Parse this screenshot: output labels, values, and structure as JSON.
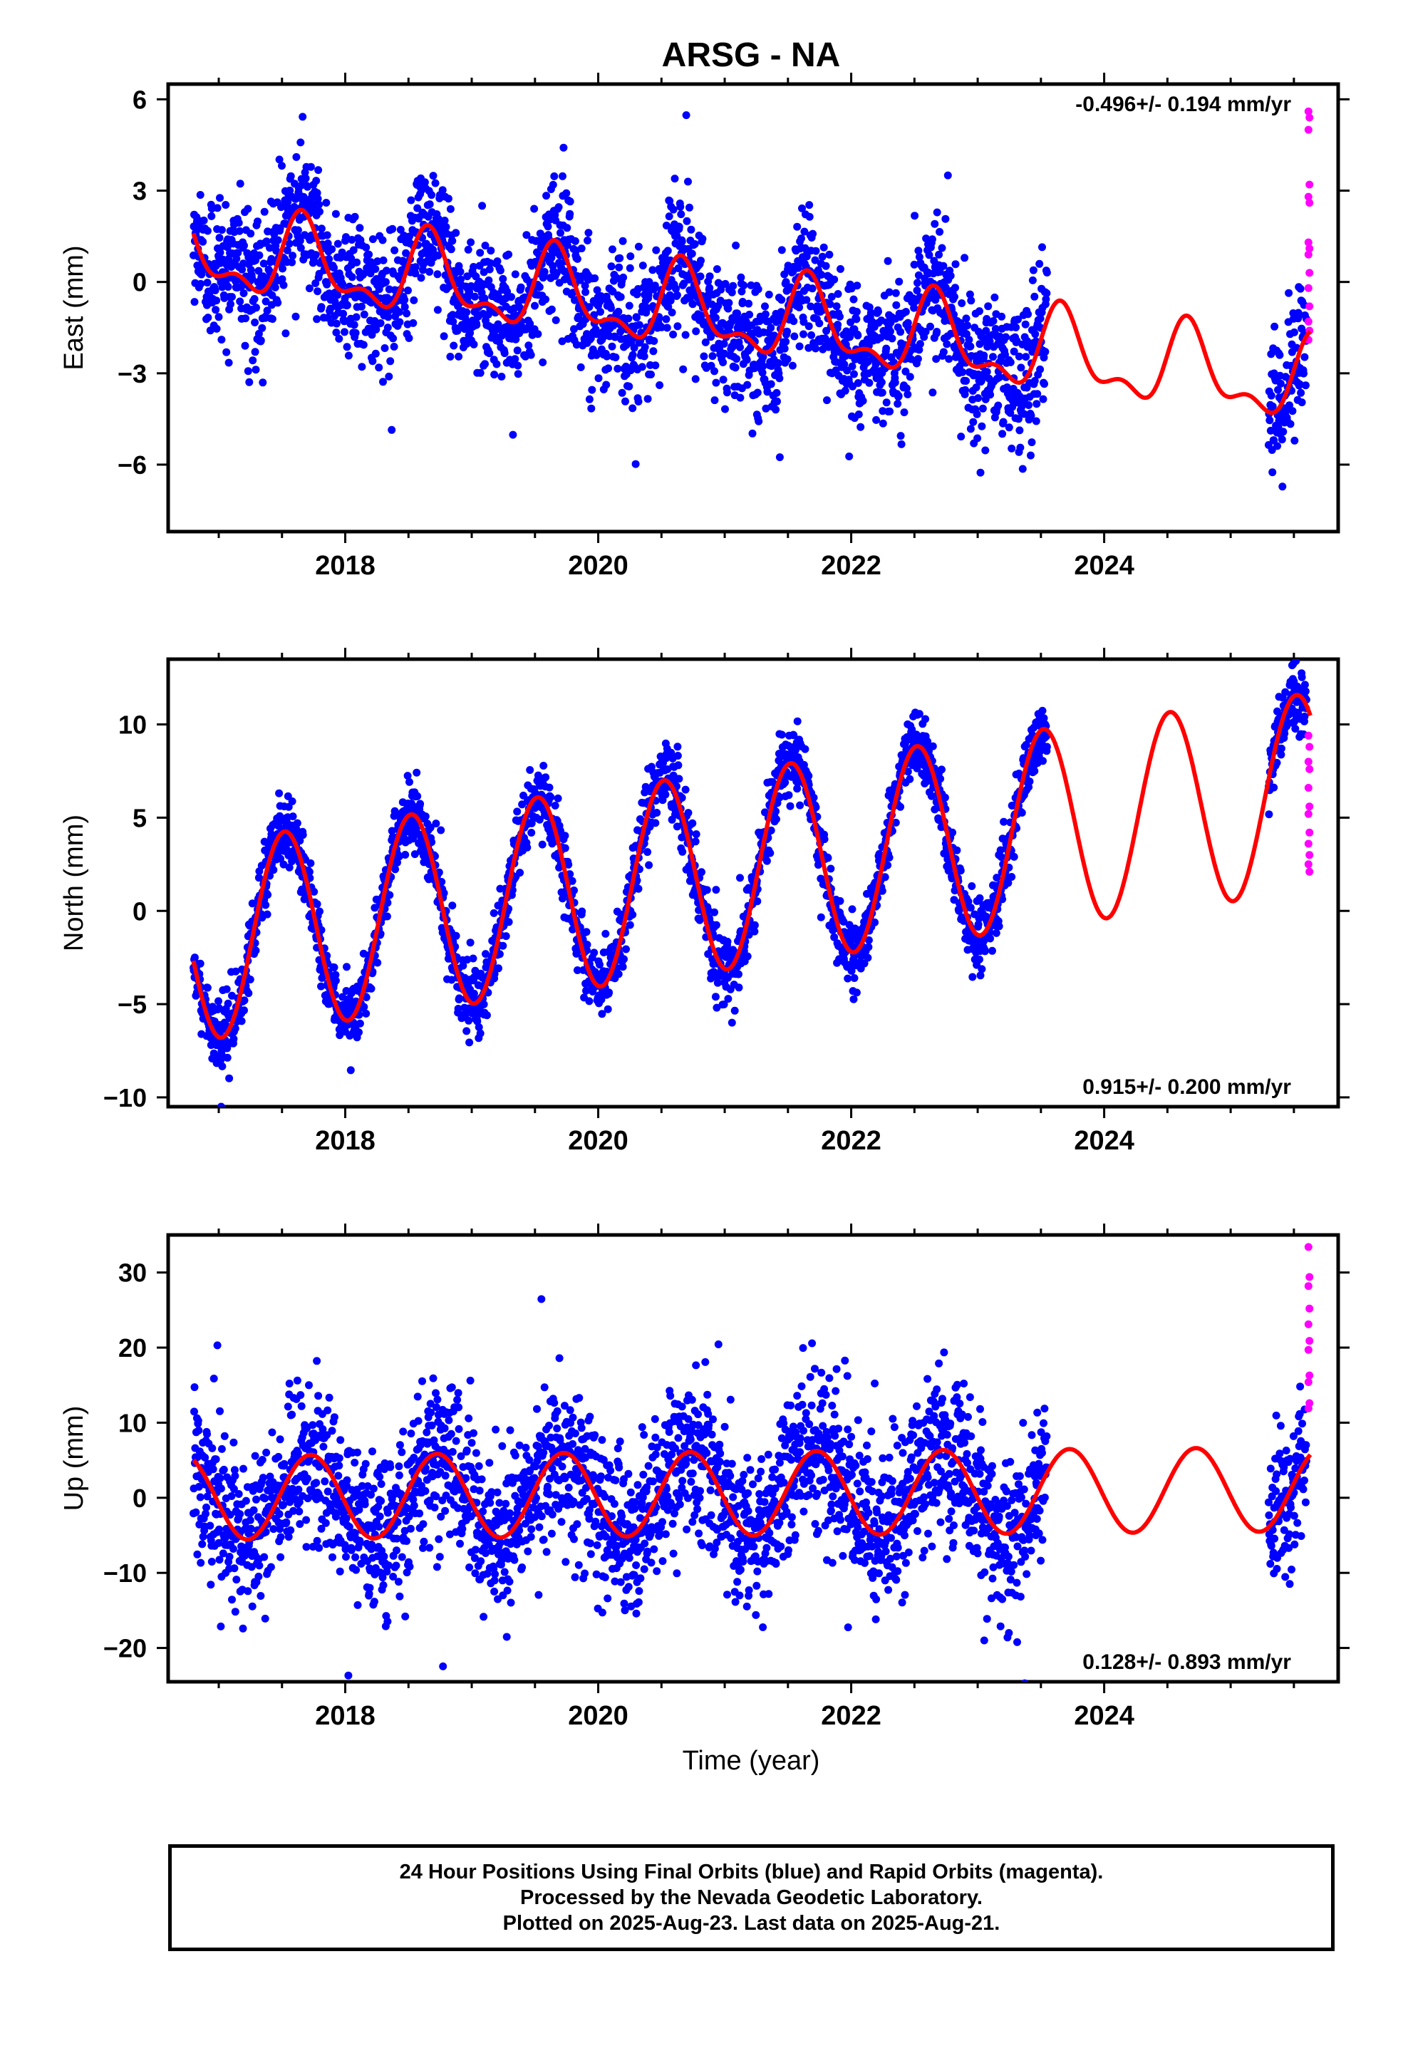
{
  "title": "ARSG - NA",
  "xlabel": "Time (year)",
  "caption": [
    "24 Hour Positions Using Final Orbits (blue) and Rapid Orbits (magenta).",
    "Processed by the Nevada Geodetic Laboratory.",
    "Plotted on 2025-Aug-23. Last data on 2025-Aug-21."
  ],
  "colors": {
    "final": "#0000ff",
    "rapid": "#ff00ff",
    "model": "#ff0000"
  },
  "chart_data": [
    {
      "type": "scatter",
      "ylabel": "East (mm)",
      "rate_label": "-0.496+/- 0.194 mm/yr",
      "rate_position": "top-right",
      "xlim": [
        2016.6,
        2025.85
      ],
      "ylim": [
        -8.2,
        6.5
      ],
      "xticks": [
        2018,
        2020,
        2022,
        2024
      ],
      "yticks": [
        -6,
        -3,
        0,
        3,
        6
      ],
      "ytick_labels": [
        "−6",
        "−3",
        "0",
        "3",
        "6"
      ],
      "data_start": 2016.8,
      "data_gap_start": 2023.55,
      "data_resume": 2025.3,
      "data_end": 2025.6,
      "model": {
        "ref_year": 2016.8,
        "offset": 1.0,
        "rate": -0.496,
        "annual_amp": 1.2,
        "annual_phase_day": 245,
        "semiannual_amp": 0.6,
        "semiannual_phase_day": 235
      },
      "scatter_std": 1.1,
      "rapid_values": [
        5.6,
        5.4,
        5.0,
        3.2,
        2.8,
        2.6,
        1.3,
        1.1,
        0.9,
        0.3,
        -0.2,
        -0.8,
        -1.3,
        -1.6,
        -1.9
      ]
    },
    {
      "type": "scatter",
      "ylabel": "North (mm)",
      "rate_label": "0.915+/- 0.200 mm/yr",
      "rate_position": "bottom-right",
      "xlim": [
        2016.6,
        2025.85
      ],
      "ylim": [
        -10.5,
        13.5
      ],
      "xticks": [
        2018,
        2020,
        2022,
        2024
      ],
      "yticks": [
        -10,
        -5,
        0,
        5,
        10
      ],
      "ytick_labels": [
        "−10",
        "−5",
        "0",
        "5",
        "10"
      ],
      "data_start": 2016.8,
      "data_gap_start": 2023.55,
      "data_resume": 2025.3,
      "data_end": 2025.6,
      "model": {
        "ref_year": 2016.8,
        "offset": -1.7,
        "rate": 0.915,
        "annual_amp": 5.3,
        "annual_phase_day": 190,
        "semiannual_amp": 0.0,
        "semiannual_phase_day": 0
      },
      "scatter_std": 0.9,
      "rapid_values": [
        9.4,
        8.8,
        8.0,
        7.6,
        6.6,
        5.6,
        5.2,
        4.2,
        3.6,
        3.0,
        2.5,
        2.1
      ]
    },
    {
      "type": "scatter",
      "ylabel": "Up (mm)",
      "rate_label": "0.128+/- 0.893 mm/yr",
      "rate_position": "bottom-right",
      "xlim": [
        2016.6,
        2025.85
      ],
      "ylim": [
        -24.5,
        35
      ],
      "xticks": [
        2018,
        2020,
        2022,
        2024
      ],
      "yticks": [
        -20,
        -10,
        0,
        10,
        20,
        30
      ],
      "ytick_labels": [
        "−20",
        "−10",
        "0",
        "10",
        "20",
        "30"
      ],
      "data_start": 2016.8,
      "data_gap_start": 2023.55,
      "data_resume": 2025.3,
      "data_end": 2025.6,
      "model": {
        "ref_year": 2016.8,
        "offset": 0.0,
        "rate": 0.128,
        "annual_amp": 5.6,
        "annual_phase_day": 265,
        "semiannual_amp": 0.0,
        "semiannual_phase_day": 0
      },
      "scatter_std": 5.2,
      "rapid_values": [
        33.4,
        29.4,
        28.2,
        25.2,
        23.1,
        20.9,
        19.7,
        16.3,
        15.4,
        12.6,
        11.9
      ]
    }
  ]
}
